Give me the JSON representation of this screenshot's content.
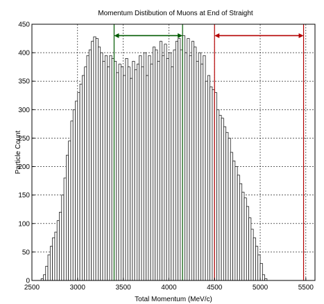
{
  "chart_data": {
    "type": "bar",
    "title": "Momentum Distibution of Muons at End of Straight",
    "xlabel": "Total Momentum (MeV/c)",
    "ylabel": "Particle Count",
    "xlim": [
      2500,
      5600
    ],
    "ylim": [
      0,
      450
    ],
    "xticks": [
      2500,
      3000,
      3500,
      4000,
      4500,
      5000,
      5500
    ],
    "yticks": [
      0,
      50,
      100,
      150,
      200,
      250,
      300,
      350,
      400,
      450
    ],
    "grid": true,
    "bin_start": 2500,
    "bin_width": 25,
    "values": [
      0,
      0,
      0,
      0,
      3,
      10,
      25,
      45,
      60,
      75,
      85,
      105,
      120,
      150,
      180,
      220,
      245,
      280,
      300,
      315,
      330,
      345,
      360,
      375,
      395,
      405,
      420,
      428,
      425,
      410,
      400,
      385,
      395,
      375,
      395,
      390,
      385,
      365,
      380,
      375,
      360,
      390,
      375,
      355,
      385,
      370,
      380,
      395,
      375,
      400,
      360,
      395,
      380,
      410,
      405,
      385,
      420,
      395,
      415,
      390,
      400,
      375,
      405,
      420,
      425,
      405,
      430,
      400,
      425,
      395,
      420,
      410,
      385,
      400,
      380,
      395,
      350,
      360,
      340,
      335,
      330,
      300,
      290,
      285,
      270,
      260,
      250,
      225,
      210,
      200,
      185,
      170,
      155,
      145,
      130,
      110,
      90,
      75,
      60,
      45,
      30,
      10,
      3,
      0
    ],
    "annotations": [
      {
        "type": "range-arrow",
        "color": "#005a00",
        "from": 3400,
        "to": 4150,
        "y": 430
      },
      {
        "type": "range-arrow",
        "color": "#b40000",
        "from": 4500,
        "to": 5475,
        "y": 430
      }
    ]
  }
}
